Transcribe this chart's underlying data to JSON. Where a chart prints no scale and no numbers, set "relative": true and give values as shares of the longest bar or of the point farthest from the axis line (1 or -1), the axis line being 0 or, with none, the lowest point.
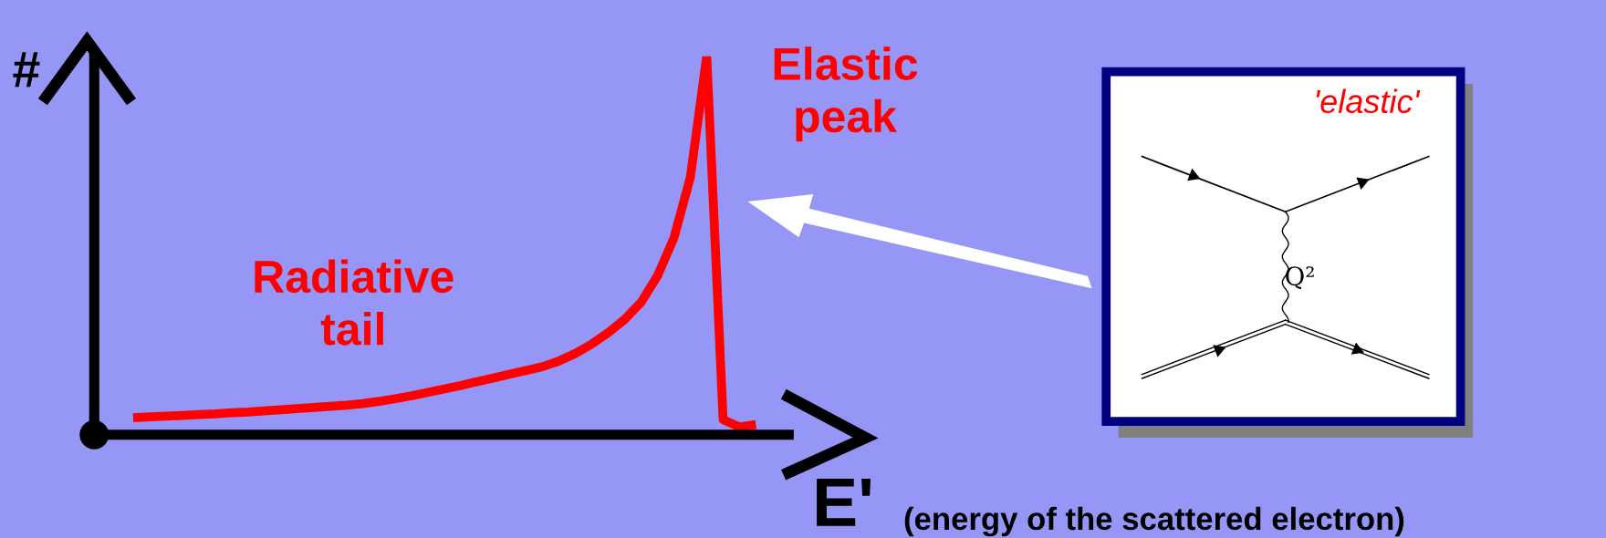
{
  "chart_data": {
    "type": "line",
    "relative": true,
    "ylabel": "#",
    "xlabel": "E'",
    "line_style": "solid",
    "categories": [
      null,
      null,
      null,
      null,
      null,
      null,
      null,
      null,
      null,
      null,
      null,
      null,
      null,
      null,
      null,
      null,
      null,
      null,
      null,
      null,
      null,
      null,
      null,
      null,
      null,
      null,
      null,
      null,
      null,
      null,
      null,
      null,
      null,
      null,
      null,
      null,
      null,
      null,
      null
    ],
    "series": [
      {
        "color": "#ff0000",
        "values": [
          0.045,
          0.047,
          0.049,
          0.051,
          0.053,
          0.055,
          0.058,
          0.06,
          0.063,
          0.066,
          0.069,
          0.072,
          0.075,
          0.078,
          0.082,
          0.088,
          0.095,
          0.103,
          0.112,
          0.121,
          0.13,
          0.14,
          0.15,
          0.16,
          0.17,
          0.18,
          0.195,
          0.215,
          0.24,
          0.27,
          0.305,
          0.35,
          0.42,
          0.52,
          0.68,
          1,
          0.04,
          0.02,
          0.027
        ]
      }
    ],
    "annotations": [
      "Elastic peak",
      "Radiative tail",
      "(energy of the scattered electron)",
      "'elastic'",
      "Q²"
    ]
  }
}
